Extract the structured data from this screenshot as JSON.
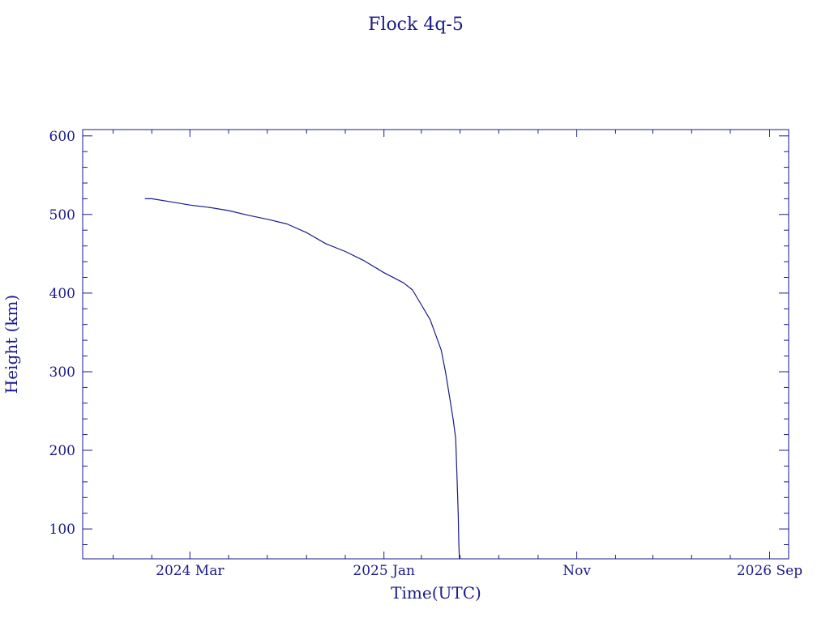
{
  "chart_data": {
    "type": "line",
    "title": "Flock 4q-5",
    "xlabel": "Time(UTC)",
    "ylabel": "Height (km)",
    "color": "#1a1a8c",
    "grid": false,
    "legend": "none",
    "xlim": [
      "2023-09-14",
      "2026-10-01"
    ],
    "ylim": [
      62,
      608
    ],
    "x_ticks": [
      {
        "date": "2024-03-01",
        "label": "2024 Mar"
      },
      {
        "date": "2025-01-01",
        "label": "2025 Jan"
      },
      {
        "date": "2025-11-01",
        "label": "Nov"
      },
      {
        "date": "2026-09-01",
        "label": "2026 Sep"
      }
    ],
    "x_minor_ticks": [
      "2023-11-01",
      "2024-01-01",
      "2024-05-01",
      "2024-07-01",
      "2024-09-01",
      "2024-11-01",
      "2025-03-01",
      "2025-05-01",
      "2025-07-01",
      "2025-09-01",
      "2026-01-01",
      "2026-03-01",
      "2026-05-01",
      "2026-07-01"
    ],
    "y_ticks": [
      100,
      200,
      300,
      400,
      500,
      600
    ],
    "series": [
      {
        "x": [
          "2023-12-21",
          "2024-01-01",
          "2024-02-01",
          "2024-03-01",
          "2024-04-01",
          "2024-05-01",
          "2024-06-01",
          "2024-07-01",
          "2024-08-01",
          "2024-09-01",
          "2024-10-01",
          "2024-11-01",
          "2024-12-01",
          "2025-01-01",
          "2025-02-01",
          "2025-02-15",
          "2025-03-01",
          "2025-03-15",
          "2025-04-01",
          "2025-04-08",
          "2025-04-15",
          "2025-04-20",
          "2025-04-24",
          "2025-04-26",
          "2025-04-28",
          "2025-04-29",
          "2025-04-30"
        ],
        "y": [
          520,
          520,
          516,
          512,
          509,
          505,
          499,
          494,
          488,
          477,
          463,
          453,
          441,
          426,
          413,
          404,
          385,
          366,
          328,
          300,
          265,
          240,
          215,
          170,
          120,
          80,
          62
        ]
      }
    ]
  }
}
